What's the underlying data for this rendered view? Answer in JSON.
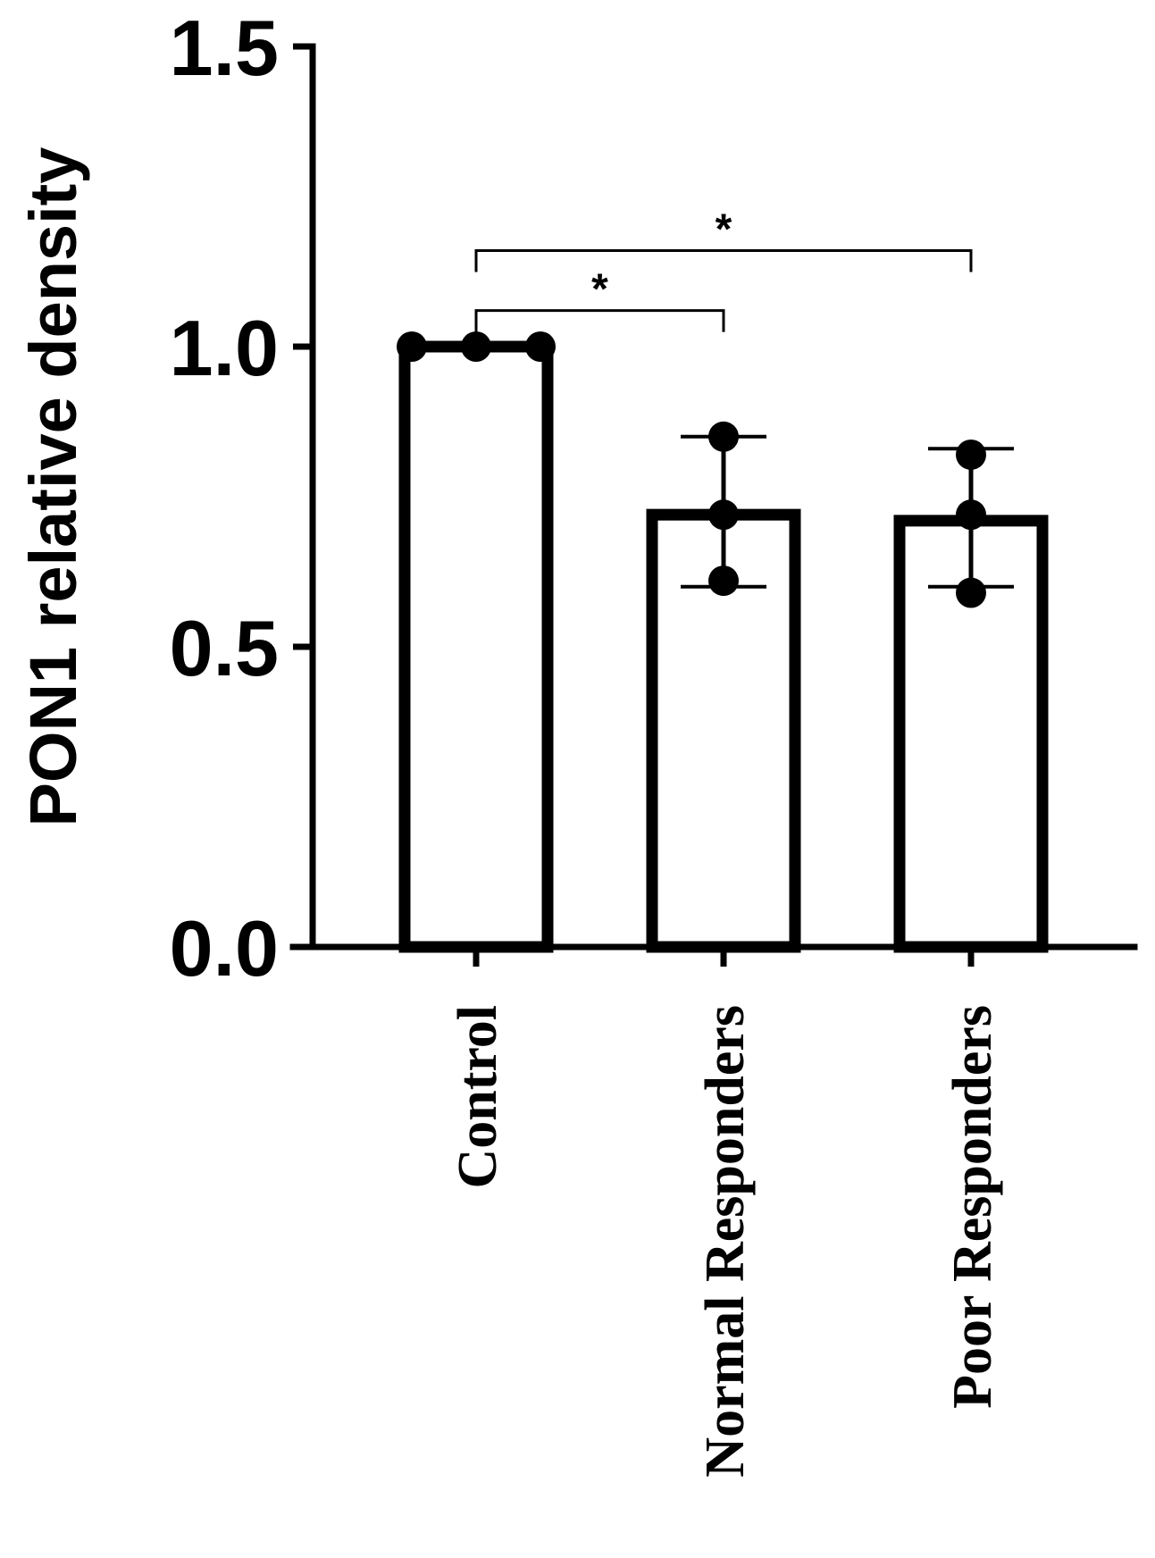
{
  "chart_data": {
    "type": "bar",
    "ylabel": "PON1 relative density",
    "xlabel": "",
    "ylim": [
      0,
      1.5
    ],
    "yticks": [
      0.0,
      0.5,
      1.0,
      1.5
    ],
    "ytick_labels": [
      "0.0",
      "0.5",
      "1.0",
      "1.5"
    ],
    "categories": [
      "Control",
      "Normal Responders",
      "Poor Responders"
    ],
    "values": [
      1.0,
      0.72,
      0.71
    ],
    "error_bars": [
      {
        "low": 1.0,
        "high": 1.0
      },
      {
        "low": 0.6,
        "high": 0.85
      },
      {
        "low": 0.6,
        "high": 0.83
      }
    ],
    "points": [
      [
        1.0,
        1.0,
        1.0
      ],
      [
        0.85,
        0.72,
        0.61
      ],
      [
        0.82,
        0.72,
        0.59
      ]
    ],
    "bar_fill": "#ffffff",
    "bar_stroke": "#000000",
    "grid": false,
    "significance": [
      {
        "from": 0,
        "to": 1,
        "label": "*",
        "y": 1.06
      },
      {
        "from": 0,
        "to": 2,
        "label": "*",
        "y": 1.16
      }
    ]
  }
}
